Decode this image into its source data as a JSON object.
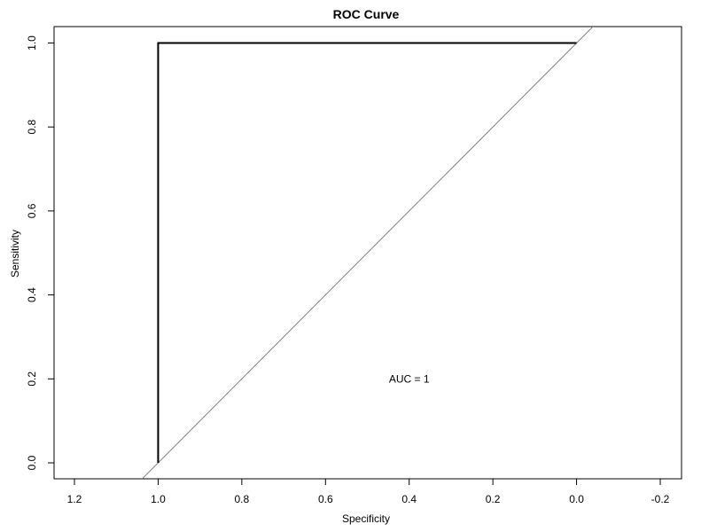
{
  "chart_data": {
    "type": "line",
    "title": "ROC Curve",
    "xlabel": "Specificity",
    "ylabel": "Sensitivity",
    "xlim": [
      1.2,
      -0.2
    ],
    "ylim": [
      0.0,
      1.0
    ],
    "x_reversed": true,
    "x_ticks": [
      1.2,
      1.0,
      0.8,
      0.6,
      0.4,
      0.2,
      0.0,
      -0.2
    ],
    "x_tick_labels": [
      "1.2",
      "1.0",
      "0.8",
      "0.6",
      "0.4",
      "0.2",
      "0.0",
      "-0.2"
    ],
    "y_ticks": [
      0.0,
      0.2,
      0.4,
      0.6,
      0.8,
      1.0
    ],
    "y_tick_labels": [
      "0.0",
      "0.2",
      "0.4",
      "0.6",
      "0.8",
      "1.0"
    ],
    "grid": false,
    "legend": "none",
    "series": [
      {
        "x": [
          1.0,
          1.0,
          0.0
        ],
        "y": [
          0.0,
          1.0,
          1.0
        ],
        "color": "#000000"
      }
    ],
    "reference_line": {
      "kind": "diagonal",
      "equation": "sensitivity = 1 - specificity",
      "color": "#808080"
    },
    "annotation": {
      "text": "AUC = 1",
      "x": 0.4,
      "y": 0.2
    }
  }
}
